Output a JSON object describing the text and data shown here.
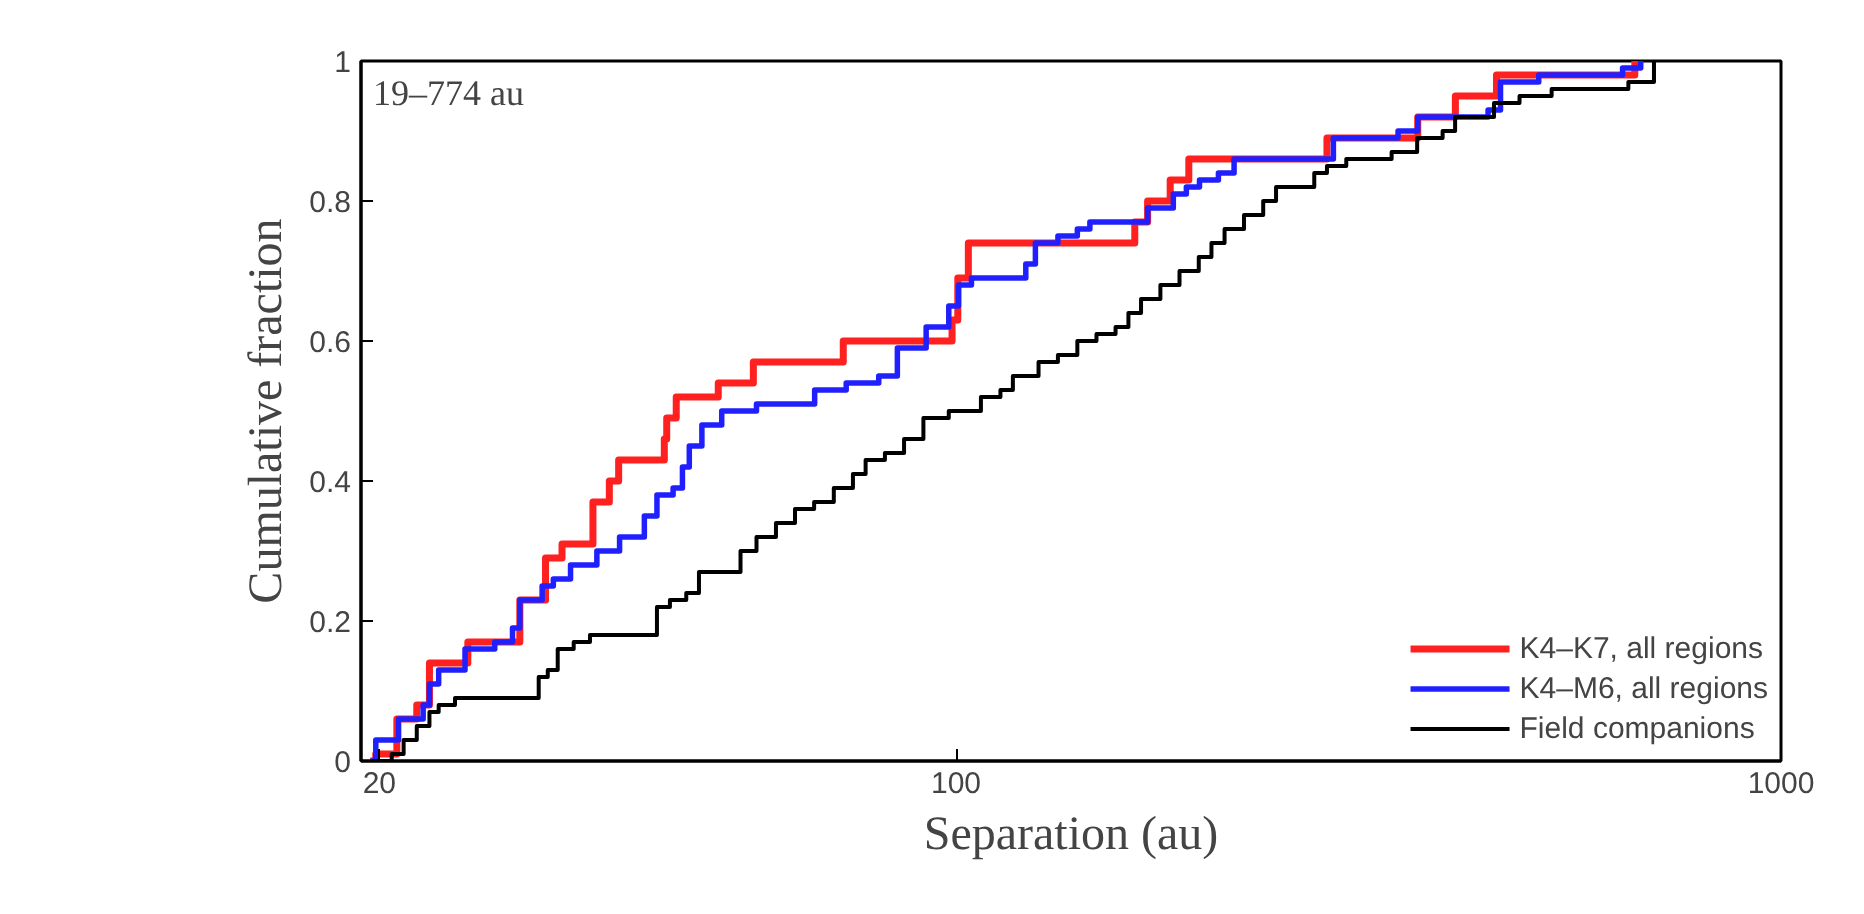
{
  "chart_data": {
    "type": "step",
    "xlabel": "Separation (au)",
    "ylabel": "Cumulative fraction",
    "log": "x",
    "xlim": [
      19,
      1000
    ],
    "xticks": [
      20,
      100,
      1000
    ],
    "ylim": [
      0,
      1
    ],
    "yticks": [
      0,
      0.2,
      0.4,
      0.6,
      0.8,
      1
    ],
    "grid": false,
    "legend": "bottom right",
    "annotations": [
      "19–774 au"
    ],
    "series": [
      {
        "name": "K4–K7, all regions",
        "color": "#ff2020",
        "x": [
          19.5,
          19.8,
          21.0,
          22.2,
          23.0,
          25.6,
          29.6,
          31.8,
          33.3,
          36.3,
          38.0,
          39.0,
          44.3,
          44.6,
          45.8,
          51.5,
          56.8,
          73.0,
          98.9,
          100.5,
          103.5,
          164.7,
          170.7,
          181.8,
          191.5,
          281.6,
          362.8,
          403,
          452,
          665
        ],
        "values": [
          0,
          0.01,
          0.06,
          0.08,
          0.14,
          0.17,
          0.23,
          0.29,
          0.31,
          0.37,
          0.4,
          0.43,
          0.46,
          0.49,
          0.52,
          0.54,
          0.57,
          0.6,
          0.63,
          0.69,
          0.74,
          0.77,
          0.8,
          0.83,
          0.86,
          0.89,
          0.92,
          0.95,
          0.98,
          1.0
        ]
      },
      {
        "name": "K4–M6, all regions",
        "color": "#2020ff",
        "x": [
          19.5,
          19.8,
          21.1,
          22.6,
          23.0,
          23.6,
          25.4,
          27.6,
          29.0,
          29.6,
          31.5,
          32.5,
          34.1,
          36.7,
          39.1,
          41.9,
          43.4,
          45.4,
          46.6,
          47.5,
          49.2,
          52.0,
          57.3,
          60.5,
          67.4,
          73.6,
          80.6,
          84.9,
          92,
          98,
          100.7,
          104.4,
          121.5,
          124.8,
          132.9,
          140.3,
          145.3,
          170.7,
          183.4,
          190.2,
          197.3,
          208,
          217.3,
          286.7,
          302.9,
          343.4,
          362.8,
          375.9,
          441.5,
          457.1,
          508.6,
          642.6,
          676
        ],
        "values": [
          0,
          0.03,
          0.06,
          0.08,
          0.11,
          0.13,
          0.16,
          0.17,
          0.19,
          0.23,
          0.25,
          0.26,
          0.28,
          0.3,
          0.32,
          0.35,
          0.38,
          0.39,
          0.42,
          0.45,
          0.48,
          0.5,
          0.51,
          0.51,
          0.53,
          0.54,
          0.55,
          0.59,
          0.62,
          0.65,
          0.68,
          0.69,
          0.71,
          0.74,
          0.75,
          0.76,
          0.77,
          0.79,
          0.81,
          0.82,
          0.83,
          0.84,
          0.86,
          0.89,
          0.89,
          0.9,
          0.92,
          0.92,
          0.93,
          0.97,
          0.98,
          0.99,
          1.0
        ]
      },
      {
        "name": "Field companions",
        "color": "#000000",
        "x": [
          19.6,
          20.7,
          21.4,
          22.2,
          23.0,
          23.6,
          24.7,
          31.2,
          32.0,
          32.9,
          34.4,
          36.0,
          43.4,
          45.0,
          47.1,
          48.8,
          54.8,
          57.3,
          60.5,
          63.8,
          67.3,
          71.1,
          75.0,
          77.7,
          82.0,
          86.5,
          91.3,
          98.0,
          107.2,
          113.2,
          117.2,
          125.9,
          132.9,
          140.3,
          148.0,
          156.1,
          161.8,
          167.6,
          176.9,
          186.6,
          196.9,
          204.0,
          211.6,
          223.4,
          235.7,
          244.3,
          271.8,
          281.6,
          297.2,
          337.3,
          362.2,
          388.9,
          402.7,
          425.6,
          448.9,
          482.0,
          527.2,
          653.1,
          701.5
        ],
        "values": [
          0,
          0.01,
          0.03,
          0.05,
          0.07,
          0.08,
          0.09,
          0.12,
          0.13,
          0.16,
          0.17,
          0.18,
          0.22,
          0.23,
          0.24,
          0.27,
          0.3,
          0.32,
          0.34,
          0.36,
          0.37,
          0.39,
          0.41,
          0.43,
          0.44,
          0.46,
          0.49,
          0.5,
          0.52,
          0.53,
          0.55,
          0.57,
          0.58,
          0.6,
          0.61,
          0.62,
          0.64,
          0.66,
          0.68,
          0.7,
          0.72,
          0.74,
          0.76,
          0.78,
          0.8,
          0.82,
          0.84,
          0.85,
          0.86,
          0.87,
          0.89,
          0.9,
          0.92,
          0.92,
          0.94,
          0.95,
          0.96,
          0.97,
          1.0
        ]
      }
    ]
  }
}
